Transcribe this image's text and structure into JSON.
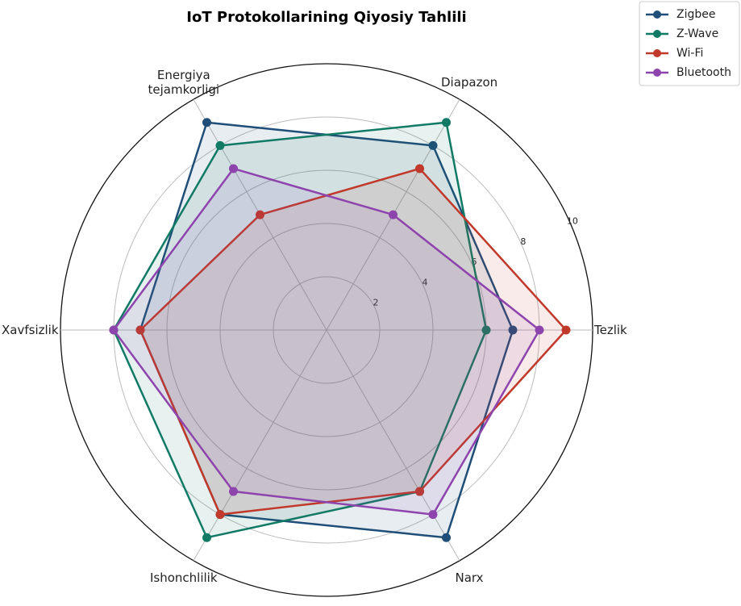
{
  "chart_data": {
    "type": "radar",
    "title": "IoT Protokollarining Qiyosiy Tahlili",
    "categories": [
      "Tezlik",
      "Diapazon",
      "Energiya\ntejamkorligi",
      "Xavfsizlik",
      "Ishonchlilik",
      "Narx"
    ],
    "series": [
      {
        "name": "Zigbee",
        "color": "#1f4e79",
        "values": [
          7,
          8,
          9,
          7,
          8,
          9
        ]
      },
      {
        "name": "Z-Wave",
        "color": "#117a65",
        "values": [
          6,
          9,
          8,
          8,
          9,
          7
        ]
      },
      {
        "name": "Wi-Fi",
        "color": "#c0392b",
        "values": [
          9,
          7,
          5,
          7,
          8,
          7
        ]
      },
      {
        "name": "Bluetooth",
        "color": "#8e44ad",
        "values": [
          8,
          5,
          7,
          8,
          7,
          8
        ]
      }
    ],
    "ylim": [
      0,
      10
    ],
    "yticks": [
      2,
      4,
      6,
      8,
      10
    ],
    "grid": true,
    "legend": "upper right"
  }
}
